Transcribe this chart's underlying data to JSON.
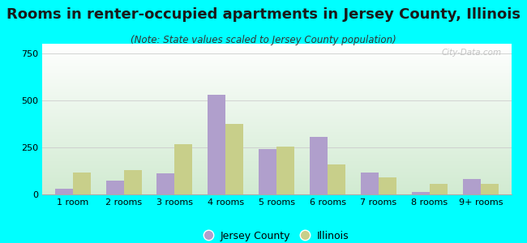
{
  "title": "Rooms in renter-occupied apartments in Jersey County, Illinois",
  "subtitle": "(Note: State values scaled to Jersey County population)",
  "categories": [
    "1 room",
    "2 rooms",
    "3 rooms",
    "4 rooms",
    "5 rooms",
    "6 rooms",
    "7 rooms",
    "8 rooms",
    "9+ rooms"
  ],
  "jersey_county": [
    30,
    75,
    110,
    530,
    240,
    305,
    115,
    15,
    80
  ],
  "illinois": [
    115,
    130,
    265,
    375,
    255,
    160,
    90,
    55,
    55
  ],
  "jersey_color": "#b09fcc",
  "illinois_color": "#c8cf8a",
  "bar_width": 0.35,
  "ylim": [
    0,
    800
  ],
  "yticks": [
    0,
    250,
    500,
    750
  ],
  "bg_color": "#00FFFF",
  "legend_jersey": "Jersey County",
  "legend_illinois": "Illinois",
  "watermark": "City-Data.com",
  "title_fontsize": 13,
  "subtitle_fontsize": 8.5,
  "tick_fontsize": 8
}
